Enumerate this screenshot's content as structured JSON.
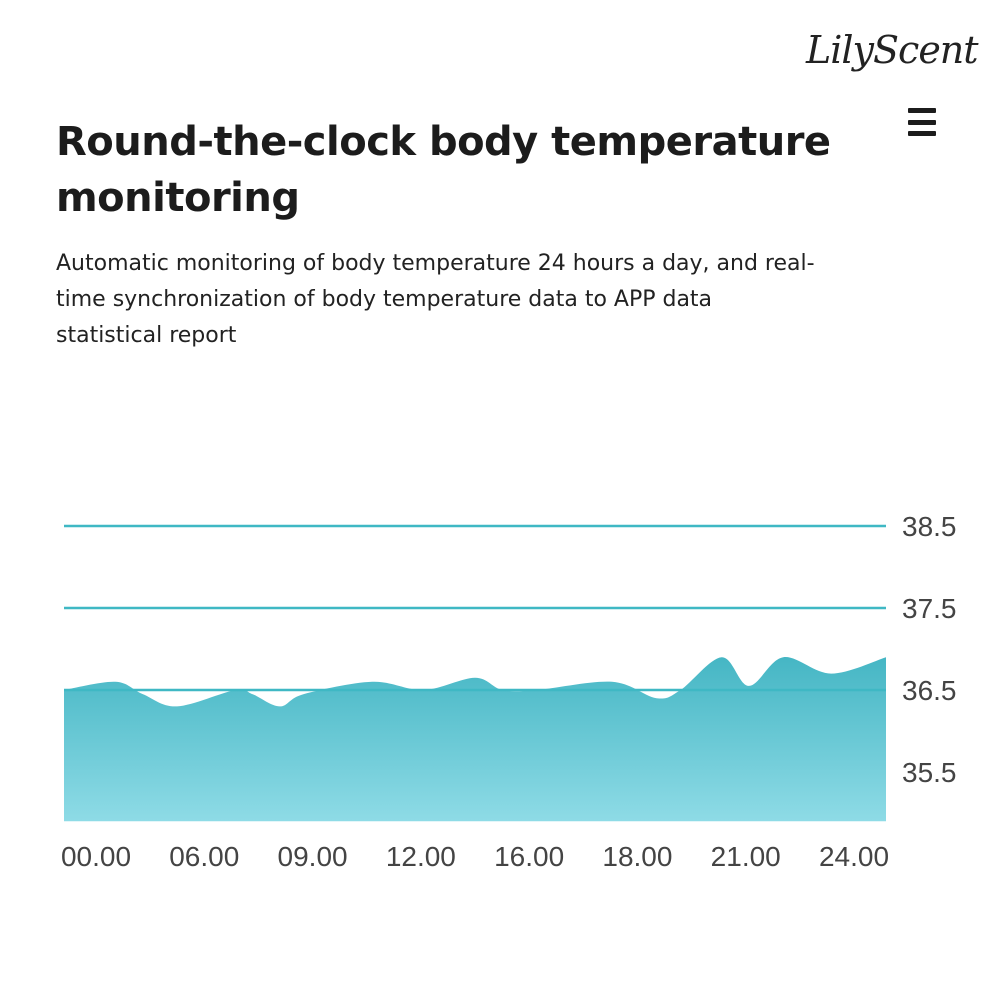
{
  "brand": {
    "logo_text": "LilyScent"
  },
  "header": {
    "menu_icon": "hamburger-menu-icon",
    "title": "Round-the-clock body temperature monitoring",
    "subtitle": "Automatic monitoring of body temperature 24 hours a day, and real-time synchronization of body temperature data to APP data statistical report"
  },
  "colors": {
    "accent": "#3fb8c4",
    "area_top": "#45b6c4",
    "area_bottom": "#8edbe6",
    "text": "#1c1c1c"
  },
  "chart_data": {
    "type": "area",
    "x_tick_labels": [
      "00.00",
      "06.00",
      "09.00",
      "12.00",
      "16.00",
      "18.00",
      "21.00",
      "24.00"
    ],
    "y_tick_labels": [
      "38.5",
      "37.5",
      "36.5",
      "35.5"
    ],
    "y_ticks": [
      38.5,
      37.5,
      36.5,
      35.5
    ],
    "reference_lines": [
      38.5,
      37.5,
      36.5
    ],
    "xlim": [
      0,
      24
    ],
    "ylim": [
      34.9,
      38.5
    ],
    "series": [
      {
        "x": [
          0,
          1.5,
          2.3,
          3.3,
          5.0,
          5.5,
          6.3,
          7.0,
          9.0,
          10.5,
          12.0,
          12.8,
          13.8,
          16.0,
          17.3,
          18.0,
          19.2,
          20.0,
          21.0,
          22.4,
          24.0
        ],
        "y": [
          36.5,
          36.6,
          36.45,
          36.3,
          36.5,
          36.45,
          36.3,
          36.45,
          36.6,
          36.5,
          36.65,
          36.5,
          36.5,
          36.6,
          36.4,
          36.5,
          36.9,
          36.55,
          36.9,
          36.7,
          36.9
        ]
      }
    ]
  }
}
